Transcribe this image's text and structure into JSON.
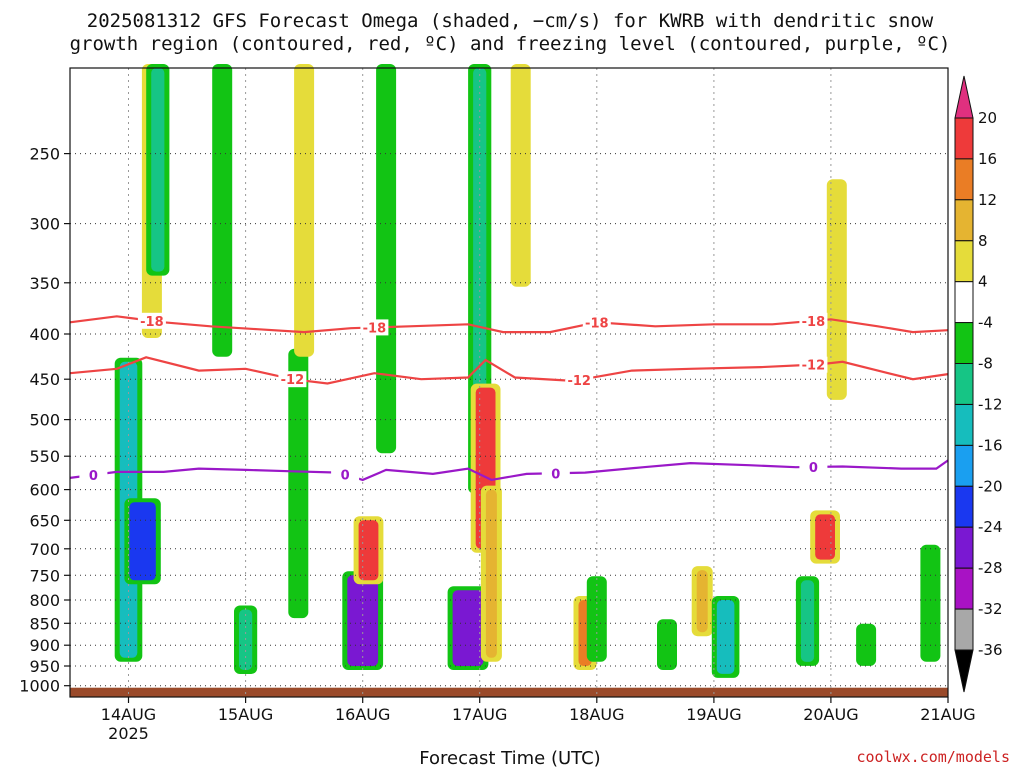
{
  "chart_data": {
    "type": "heatmap",
    "title_line1": "2025081312 GFS Forecast Omega (shaded, −cm/s) for KWRB with dendritic snow",
    "title_line2": "growth region (contoured, red, ºC) and freezing level (contoured, purple, ºC)",
    "xlabel": "Forecast Time (UTC)",
    "credit": "coolwx.com/models",
    "x_ticks": [
      "14AUG",
      "15AUG",
      "16AUG",
      "17AUG",
      "18AUG",
      "19AUG",
      "20AUG",
      "21AUG"
    ],
    "x_year": "2025",
    "x_range_days": [
      13.5,
      21.0
    ],
    "y_ticks": [
      250,
      300,
      350,
      400,
      450,
      500,
      550,
      600,
      650,
      700,
      750,
      800,
      850,
      900,
      950,
      1000
    ],
    "y_range_hpa": [
      200,
      1030
    ],
    "y_scale": "log-pressure",
    "grid": true,
    "colorbar": {
      "labels": [
        "20",
        "16",
        "12",
        "8",
        "4",
        "-4",
        "-8",
        "-12",
        "-16",
        "-20",
        "-24",
        "-28",
        "-32",
        "-36"
      ],
      "colors": [
        "#e0307f",
        "#ee3a3a",
        "#ea7d25",
        "#e5b431",
        "#e5dc3a",
        "#ffffff",
        "#12c414",
        "#16c585",
        "#16bdbd",
        "#1a9ff0",
        "#1a38f0",
        "#7a18d2",
        "#a812c4",
        "#a8a8a8",
        "#000000"
      ]
    },
    "omega_cells": [
      {
        "day": 14.0,
        "p_top": 430,
        "p_bot": 930,
        "value": -16
      },
      {
        "day": 14.12,
        "p_top": 620,
        "p_bot": 760,
        "value": -24
      },
      {
        "day": 14.2,
        "p_top": 200,
        "p_bot": 400,
        "value": 6
      },
      {
        "day": 14.25,
        "p_top": 200,
        "p_bot": 340,
        "value": -12
      },
      {
        "day": 14.8,
        "p_top": 200,
        "p_bot": 420,
        "value": -8
      },
      {
        "day": 15.0,
        "p_top": 820,
        "p_bot": 960,
        "value": -12
      },
      {
        "day": 15.45,
        "p_top": 420,
        "p_bot": 830,
        "value": -8
      },
      {
        "day": 15.5,
        "p_top": 200,
        "p_bot": 420,
        "value": 5
      },
      {
        "day": 16.0,
        "p_top": 750,
        "p_bot": 950,
        "value": -28
      },
      {
        "day": 16.05,
        "p_top": 650,
        "p_bot": 760,
        "value": 18
      },
      {
        "day": 16.2,
        "p_top": 200,
        "p_bot": 540,
        "value": -8
      },
      {
        "day": 16.9,
        "p_top": 780,
        "p_bot": 950,
        "value": -28
      },
      {
        "day": 17.0,
        "p_top": 200,
        "p_bot": 600,
        "value": -12
      },
      {
        "day": 17.05,
        "p_top": 460,
        "p_bot": 700,
        "value": 18
      },
      {
        "day": 17.1,
        "p_top": 600,
        "p_bot": 930,
        "value": 10
      },
      {
        "day": 17.35,
        "p_top": 200,
        "p_bot": 350,
        "value": 5
      },
      {
        "day": 17.9,
        "p_top": 800,
        "p_bot": 950,
        "value": 12
      },
      {
        "day": 18.0,
        "p_top": 760,
        "p_bot": 930,
        "value": -8
      },
      {
        "day": 18.6,
        "p_top": 850,
        "p_bot": 950,
        "value": -8
      },
      {
        "day": 18.9,
        "p_top": 740,
        "p_bot": 870,
        "value": 10
      },
      {
        "day": 19.1,
        "p_top": 800,
        "p_bot": 970,
        "value": -16
      },
      {
        "day": 19.8,
        "p_top": 760,
        "p_bot": 940,
        "value": -12
      },
      {
        "day": 19.95,
        "p_top": 640,
        "p_bot": 720,
        "value": 18
      },
      {
        "day": 20.05,
        "p_top": 270,
        "p_bot": 470,
        "value": 5
      },
      {
        "day": 20.3,
        "p_top": 860,
        "p_bot": 940,
        "value": -8
      },
      {
        "day": 20.85,
        "p_top": 700,
        "p_bot": 930,
        "value": -8
      }
    ],
    "contours": [
      {
        "label": "-18",
        "color": "#ee4444",
        "points": [
          [
            13.5,
            388
          ],
          [
            13.9,
            382
          ],
          [
            14.3,
            388
          ],
          [
            14.7,
            392
          ],
          [
            15.1,
            395
          ],
          [
            15.5,
            398
          ],
          [
            15.9,
            394
          ],
          [
            16.4,
            392
          ],
          [
            16.9,
            390
          ],
          [
            17.2,
            398
          ],
          [
            17.6,
            398
          ],
          [
            18.0,
            388
          ],
          [
            18.5,
            392
          ],
          [
            19.0,
            390
          ],
          [
            19.5,
            390
          ],
          [
            20.0,
            385
          ],
          [
            20.4,
            392
          ],
          [
            20.7,
            398
          ],
          [
            21.0,
            396
          ]
        ],
        "label_days": [
          14.2,
          16.1,
          18.0,
          19.85
        ]
      },
      {
        "label": "-12",
        "color": "#ee4444",
        "points": [
          [
            13.5,
            443
          ],
          [
            13.9,
            438
          ],
          [
            14.15,
            425
          ],
          [
            14.6,
            440
          ],
          [
            15.0,
            438
          ],
          [
            15.4,
            450
          ],
          [
            15.7,
            455
          ],
          [
            16.1,
            443
          ],
          [
            16.5,
            450
          ],
          [
            16.9,
            448
          ],
          [
            17.05,
            428
          ],
          [
            17.3,
            448
          ],
          [
            17.8,
            452
          ],
          [
            18.3,
            440
          ],
          [
            18.8,
            438
          ],
          [
            19.4,
            436
          ],
          [
            19.9,
            433
          ],
          [
            20.1,
            430
          ],
          [
            20.4,
            440
          ],
          [
            20.7,
            450
          ],
          [
            21.0,
            444
          ]
        ],
        "label_days": [
          15.4,
          17.85,
          19.85
        ]
      },
      {
        "label": "0",
        "color": "#9a18c8",
        "points": [
          [
            13.5,
            582
          ],
          [
            13.9,
            573
          ],
          [
            14.3,
            573
          ],
          [
            14.6,
            568
          ],
          [
            15.0,
            570
          ],
          [
            15.4,
            572
          ],
          [
            15.8,
            574
          ],
          [
            16.0,
            585
          ],
          [
            16.2,
            570
          ],
          [
            16.6,
            576
          ],
          [
            16.9,
            568
          ],
          [
            17.1,
            585
          ],
          [
            17.4,
            576
          ],
          [
            17.9,
            574
          ],
          [
            18.4,
            566
          ],
          [
            18.8,
            560
          ],
          [
            19.3,
            563
          ],
          [
            19.7,
            566
          ],
          [
            20.1,
            565
          ],
          [
            20.6,
            568
          ],
          [
            20.9,
            568
          ],
          [
            21.0,
            556
          ]
        ],
        "label_days": [
          13.7,
          15.85,
          17.65,
          19.85
        ]
      }
    ],
    "ground_pressure_hpa": 1000
  }
}
